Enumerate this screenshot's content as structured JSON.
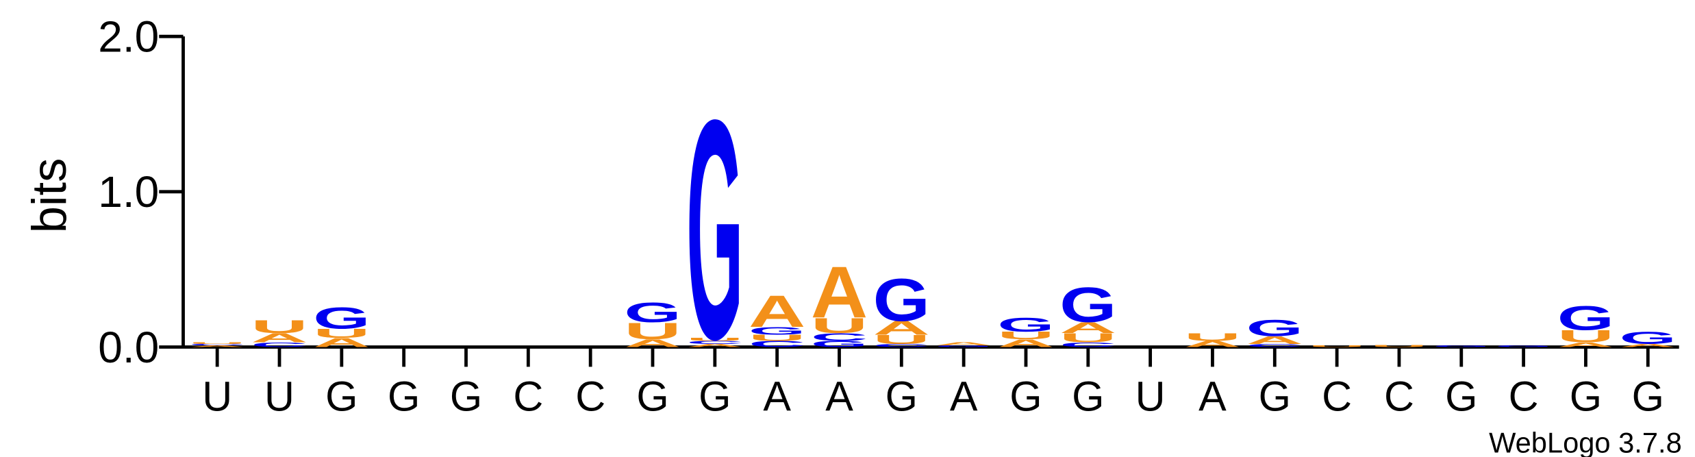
{
  "chart_data": {
    "type": "logo",
    "ylabel": "bits",
    "annotation": "WebLogo 3.7.8",
    "categories": [
      "U",
      "U",
      "G",
      "G",
      "G",
      "C",
      "C",
      "G",
      "G",
      "A",
      "A",
      "G",
      "A",
      "G",
      "G",
      "U",
      "A",
      "G",
      "C",
      "C",
      "G",
      "C",
      "G",
      "G"
    ],
    "ylim": [
      0,
      2.0
    ],
    "yticks": [
      {
        "value": 0,
        "label": "0.0"
      },
      {
        "value": 1,
        "label": "1.0"
      },
      {
        "value": 2,
        "label": "2.0"
      }
    ],
    "series": [
      {
        "name": "A",
        "color": "#f39019",
        "values": [
          0.01,
          0.06,
          0.06,
          0,
          0,
          0,
          0,
          0.05,
          0.02,
          0.21,
          0.34,
          0.09,
          0.02,
          0.05,
          0.07,
          0,
          0.04,
          0.05,
          0,
          0,
          0,
          0,
          0.03,
          0.02
        ]
      },
      {
        "name": "C",
        "color": "#0000f0",
        "values": [
          0.01,
          0.03,
          0,
          0,
          0,
          0,
          0,
          0,
          0.02,
          0.04,
          0.05,
          0.02,
          0,
          0,
          0.03,
          0,
          0,
          0.02,
          0,
          0,
          0,
          0,
          0,
          0
        ]
      },
      {
        "name": "G",
        "color": "#0000f0",
        "values": [
          0,
          0,
          0.14,
          0,
          0,
          0,
          0,
          0.13,
          1.45,
          0.05,
          0.04,
          0.28,
          0.01,
          0.09,
          0.23,
          0,
          0,
          0.11,
          0,
          0,
          0.01,
          0.01,
          0.16,
          0.08
        ]
      },
      {
        "name": "U",
        "color": "#f39019",
        "values": [
          0.01,
          0.085,
          0.06,
          0,
          0,
          0,
          0,
          0.11,
          0.02,
          0.04,
          0.1,
          0.06,
          0,
          0.05,
          0.06,
          0,
          0.05,
          0,
          0.01,
          0.015,
          0,
          0,
          0.08,
          0
        ]
      }
    ]
  }
}
